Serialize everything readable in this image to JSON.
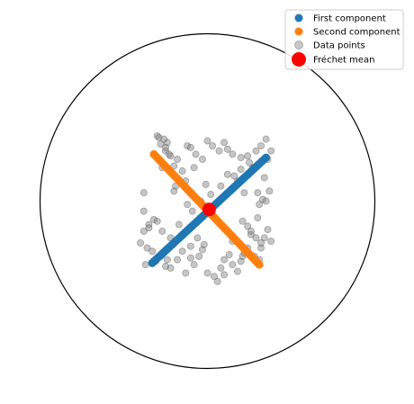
{
  "chart_data": {
    "type": "scatter",
    "title": "",
    "xlabel": "",
    "ylabel": "",
    "domain": "unit disk (Poincaré ball)",
    "grid": false,
    "axes_visible": false,
    "xlim": [
      -1.0,
      1.0
    ],
    "ylim": [
      -1.0,
      1.0
    ],
    "legend": {
      "location": "top-right",
      "entries": [
        {
          "key": "first",
          "label": "First component",
          "marker": "circle",
          "color": "#1f77b4"
        },
        {
          "key": "second",
          "label": "Second component",
          "marker": "circle",
          "color": "#ff7f0e"
        },
        {
          "key": "data",
          "label": "Data points",
          "marker": "circle",
          "color": "#808080"
        },
        {
          "key": "mean",
          "label": "Fréchet mean",
          "marker": "large-circle",
          "color": "#ff0000"
        }
      ]
    },
    "boundary_circle": {
      "center": [
        0,
        0
      ],
      "radius": 1.0,
      "color": "#000000"
    },
    "frechet_mean": {
      "x": 0.01,
      "y": -0.05,
      "color": "#ff0000"
    },
    "first_component": {
      "color": "#1f77b4",
      "from": [
        -0.33,
        -0.37
      ],
      "to": [
        0.35,
        0.26
      ],
      "n_points": 60
    },
    "second_component": {
      "color": "#ff7f0e",
      "from": [
        -0.32,
        0.28
      ],
      "to": [
        0.31,
        -0.38
      ],
      "n_points": 60
    },
    "series": [
      {
        "name": "Data points",
        "color": "#808080",
        "x": [
          -0.3,
          -0.29,
          -0.26,
          -0.24,
          -0.28,
          -0.25,
          -0.22,
          -0.27,
          -0.18,
          -0.12,
          -0.1,
          -0.07,
          -0.13,
          -0.04,
          -0.2,
          -0.28,
          -0.25,
          -0.23,
          -0.2,
          -0.15,
          -0.08,
          -0.03,
          0.0,
          0.03,
          0.07,
          0.1,
          0.12,
          0.15,
          0.2,
          0.24,
          0.29,
          0.32,
          0.35,
          0.38,
          0.36,
          0.27,
          0.2,
          0.16,
          0.08,
          0.22,
          0.3,
          0.33,
          0.37,
          0.35,
          0.3,
          0.21,
          0.24,
          0.26,
          0.36,
          0.38,
          0.34,
          0.32,
          0.28,
          0.31,
          -0.36,
          -0.4,
          -0.38,
          -0.32,
          -0.35,
          -0.38,
          -0.3,
          -0.27,
          -0.22,
          -0.24,
          -0.28,
          -0.33,
          -0.37,
          -0.31,
          -0.25,
          -0.22,
          -0.18,
          -0.15,
          -0.1,
          -0.1,
          -0.13,
          -0.08,
          -0.05,
          -0.03,
          0.0,
          0.04,
          0.08,
          0.1,
          0.13,
          0.18,
          0.2,
          0.22,
          0.24,
          0.29,
          0.32,
          0.26,
          0.21,
          0.15,
          0.1,
          0.06,
          -0.04,
          -0.09,
          -0.12,
          -0.06,
          -0.02,
          0.02,
          -0.38,
          -0.35,
          -0.19,
          -0.17,
          0.25,
          0.18,
          0.12,
          0.31,
          0.34,
          -0.12,
          -0.01,
          0.15
        ],
        "y": [
          0.39,
          0.38,
          0.37,
          0.35,
          0.34,
          0.3,
          0.27,
          0.2,
          0.25,
          0.33,
          0.32,
          0.28,
          0.12,
          0.0,
          0.06,
          0.24,
          0.32,
          0.28,
          0.21,
          0.18,
          0.2,
          0.25,
          0.36,
          0.33,
          0.3,
          0.35,
          0.31,
          0.28,
          0.26,
          0.27,
          0.3,
          0.33,
          0.37,
          0.3,
          0.25,
          0.2,
          0.19,
          0.15,
          0.09,
          0.05,
          0.05,
          0.01,
          0.06,
          0.0,
          -0.1,
          -0.12,
          -0.15,
          -0.2,
          -0.17,
          -0.24,
          -0.22,
          -0.28,
          -0.33,
          -0.35,
          -0.28,
          -0.25,
          -0.18,
          -0.11,
          -0.14,
          0.05,
          -0.12,
          -0.18,
          -0.22,
          -0.35,
          -0.33,
          -0.3,
          -0.38,
          -0.36,
          -0.39,
          -0.4,
          -0.35,
          -0.3,
          -0.27,
          -0.34,
          -0.43,
          -0.38,
          -0.33,
          -0.29,
          -0.43,
          -0.45,
          -0.4,
          -0.35,
          -0.32,
          -0.42,
          -0.36,
          -0.31,
          -0.28,
          -0.22,
          -0.25,
          -0.18,
          -0.33,
          -0.38,
          -0.44,
          -0.48,
          -0.1,
          -0.06,
          -0.18,
          -0.22,
          -0.26,
          0.04,
          -0.06,
          -0.16,
          0.09,
          -0.14,
          0.23,
          0.12,
          0.16,
          -0.02,
          0.14,
          -0.02,
          0.1,
          -0.24
        ]
      }
    ]
  }
}
